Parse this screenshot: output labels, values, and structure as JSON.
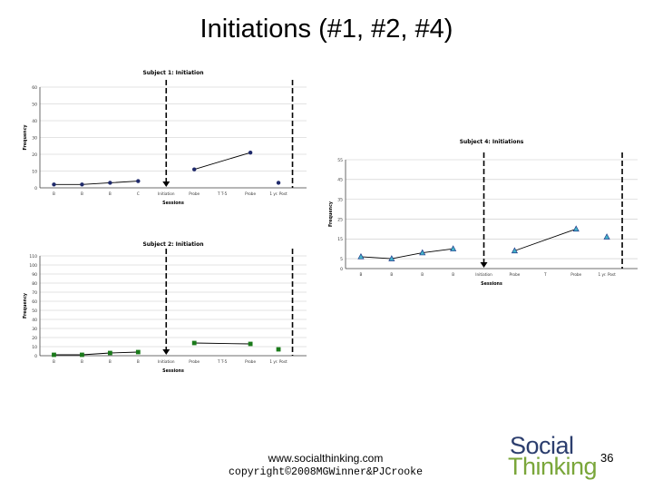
{
  "slide": {
    "title": "Initiations (#1, #2, #4)",
    "footer_url": "www.socialthinking.com",
    "footer_copyright": "copyright©2008MGWinner&PJCrooke",
    "logo_word1": "Social",
    "logo_word2": "Thinking",
    "page_number": "36"
  },
  "colors": {
    "subject1": "#1f2a6b",
    "subject2": "#1a7a1a",
    "subject4_fill": "#44b3c8",
    "subject4_stroke": "#1f3a8a",
    "phase_line": "#000000",
    "grid": "#c8c8c8"
  },
  "chart_data": [
    {
      "id": "subject1",
      "type": "line",
      "title": "Subject 1: Initiation",
      "xlabel": "Sessions",
      "ylabel": "Frequency",
      "ylim": [
        0,
        60
      ],
      "yticks": [
        0,
        10,
        20,
        30,
        40,
        50,
        60
      ],
      "categories": [
        "B",
        "B",
        "B",
        "C",
        "Initiation",
        "Probe",
        "T T-5",
        "Probe",
        "1 yr. Post"
      ],
      "marker": "circle",
      "segments": [
        [
          [
            0,
            2
          ],
          [
            1,
            2
          ],
          [
            2,
            3
          ],
          [
            3,
            4
          ]
        ],
        [
          [
            5,
            11
          ],
          [
            7,
            21
          ]
        ],
        [
          [
            8,
            3
          ]
        ]
      ],
      "phase_lines": [
        {
          "x": 4,
          "style": "dashed",
          "arrow": true
        },
        {
          "x": 8.5,
          "style": "dashed",
          "arrow": false
        }
      ]
    },
    {
      "id": "subject2",
      "type": "line",
      "title": "Subject 2: Initiation",
      "xlabel": "Sessions",
      "ylabel": "Frequency",
      "ylim": [
        0,
        110
      ],
      "yticks": [
        0,
        10,
        20,
        30,
        40,
        50,
        60,
        70,
        80,
        90,
        100,
        110
      ],
      "categories": [
        "B",
        "B",
        "B",
        "B",
        "Initiation",
        "Probe",
        "T T-5",
        "Probe",
        "1 yr. Post"
      ],
      "marker": "square",
      "segments": [
        [
          [
            0,
            1
          ],
          [
            1,
            1
          ],
          [
            2,
            3
          ],
          [
            3,
            4
          ]
        ],
        [
          [
            5,
            14
          ],
          [
            7,
            13
          ]
        ],
        [
          [
            8,
            7
          ]
        ]
      ],
      "phase_lines": [
        {
          "x": 4,
          "style": "dashed",
          "arrow": true
        },
        {
          "x": 8.5,
          "style": "dashed",
          "arrow": false
        }
      ]
    },
    {
      "id": "subject4",
      "type": "line",
      "title": "Subject 4: Initiations",
      "xlabel": "Sessions",
      "ylabel": "Frequency",
      "ylim": [
        0,
        55
      ],
      "yticks": [
        0,
        5,
        15,
        25,
        35,
        45,
        55
      ],
      "categories": [
        "B",
        "B",
        "B",
        "B",
        "Initiation",
        "Probe",
        "T",
        "Probe",
        "1 yr. Post"
      ],
      "marker": "triangle",
      "segments": [
        [
          [
            0,
            6
          ],
          [
            1,
            5
          ],
          [
            2,
            8
          ],
          [
            3,
            10
          ]
        ],
        [
          [
            5,
            9
          ],
          [
            7,
            20
          ]
        ],
        [
          [
            8,
            16
          ]
        ]
      ],
      "phase_lines": [
        {
          "x": 4,
          "style": "dashed",
          "arrow": true
        },
        {
          "x": 8.5,
          "style": "dashed",
          "arrow": false
        }
      ]
    }
  ]
}
